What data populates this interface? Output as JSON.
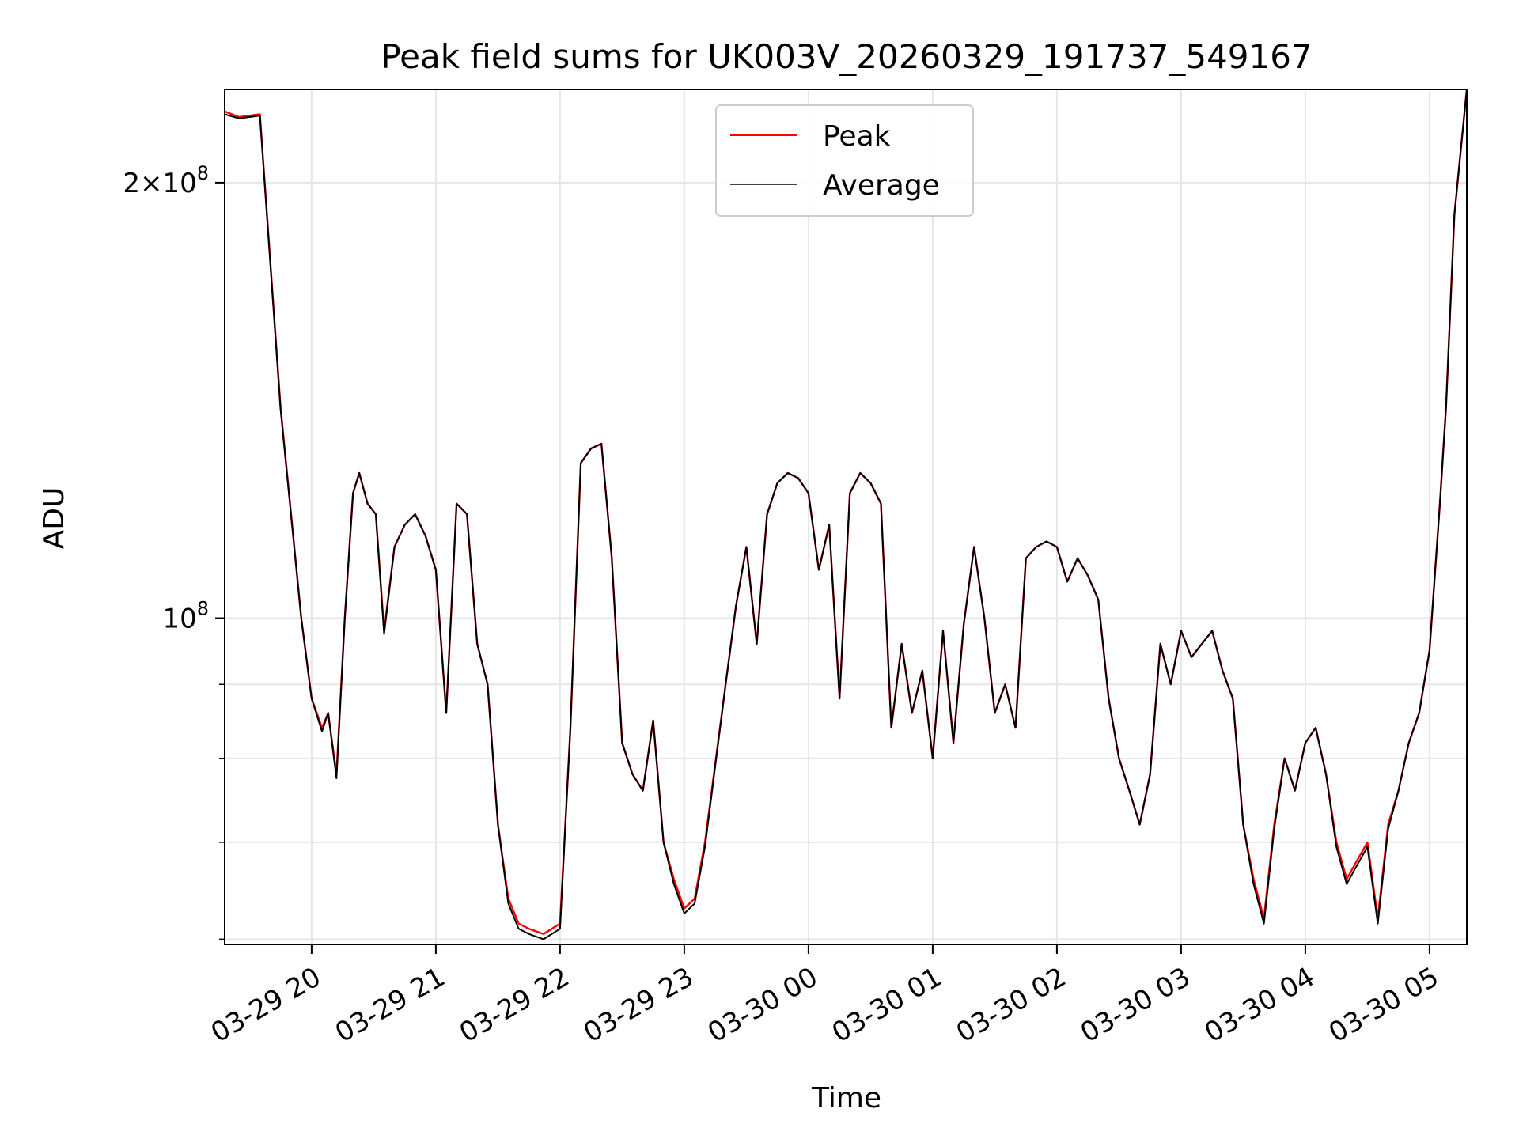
{
  "chart_data": {
    "type": "line",
    "title": "Peak field sums for UK003V_20260329_191737_549167",
    "xlabel": "Time",
    "ylabel": "ADU",
    "y_scale": "log",
    "ylim": [
      59500000,
      232000000
    ],
    "xlim": [
      "2026-03-29 19:18",
      "2026-03-30 05:18"
    ],
    "grid": true,
    "legend": "upper-center",
    "x_ticks": [
      "03-29 20",
      "03-29 21",
      "03-29 22",
      "03-29 23",
      "03-30 00",
      "03-30 01",
      "03-30 02",
      "03-30 03",
      "03-30 04",
      "03-30 05"
    ],
    "y_ticks": [
      {
        "value": 100000000,
        "mantissa": "",
        "exp": "8"
      },
      {
        "value": 200000000,
        "mantissa": "2",
        "exp": "8"
      }
    ],
    "x": [
      "19:18",
      "19:25",
      "19:35",
      "19:45",
      "19:55",
      "20:00",
      "20:05",
      "20:08",
      "20:12",
      "20:16",
      "20:20",
      "20:23",
      "20:27",
      "20:31",
      "20:35",
      "20:40",
      "20:45",
      "20:50",
      "20:55",
      "21:00",
      "21:05",
      "21:10",
      "21:15",
      "21:20",
      "21:25",
      "21:30",
      "21:35",
      "21:40",
      "21:45",
      "21:52",
      "22:00",
      "22:05",
      "22:10",
      "22:15",
      "22:20",
      "22:25",
      "22:30",
      "22:35",
      "22:40",
      "22:45",
      "22:50",
      "22:55",
      "23:00",
      "23:05",
      "23:10",
      "23:20",
      "23:25",
      "23:30",
      "23:35",
      "23:40",
      "23:45",
      "23:50",
      "23:55",
      "00:00",
      "00:05",
      "00:10",
      "00:15",
      "00:20",
      "00:25",
      "00:30",
      "00:35",
      "00:40",
      "00:45",
      "00:50",
      "00:55",
      "01:00",
      "01:05",
      "01:10",
      "01:15",
      "01:20",
      "01:25",
      "01:30",
      "01:35",
      "01:40",
      "01:45",
      "01:50",
      "01:55",
      "02:00",
      "02:05",
      "02:10",
      "02:15",
      "02:20",
      "02:25",
      "02:30",
      "02:35",
      "02:40",
      "02:45",
      "02:50",
      "02:55",
      "03:00",
      "03:05",
      "03:10",
      "03:15",
      "03:20",
      "03:25",
      "03:30",
      "03:35",
      "03:40",
      "03:45",
      "03:50",
      "03:55",
      "04:00",
      "04:05",
      "04:10",
      "04:15",
      "04:20",
      "04:25",
      "04:30",
      "04:35",
      "04:40",
      "04:45",
      "04:50",
      "04:55",
      "05:00",
      "05:05",
      "05:08",
      "05:12",
      "05:18"
    ],
    "series": [
      {
        "name": "Peak",
        "color": "#ff0000",
        "width": 1.2,
        "values": [
          224000000,
          222000000,
          223000000,
          140000000,
          100000000,
          88000000,
          84000000,
          86000000,
          78000000,
          100000000,
          122000000,
          126000000,
          120000000,
          118000000,
          98000000,
          112000000,
          116000000,
          118000000,
          114000000,
          108000000,
          86000000,
          120000000,
          118000000,
          96000000,
          90000000,
          72000000,
          64000000,
          61500000,
          61000000,
          60500000,
          61500000,
          84000000,
          128000000,
          131000000,
          132000000,
          110000000,
          82000000,
          78000000,
          76000000,
          85000000,
          70000000,
          66000000,
          63000000,
          64000000,
          70000000,
          90000000,
          102000000,
          112000000,
          96000000,
          118000000,
          124000000,
          126000000,
          125000000,
          122000000,
          108000000,
          116000000,
          88000000,
          122000000,
          126000000,
          124000000,
          120000000,
          84000000,
          96000000,
          86000000,
          92000000,
          80000000,
          98000000,
          82000000,
          99000000,
          112000000,
          100000000,
          86000000,
          90000000,
          84000000,
          110000000,
          112000000,
          113000000,
          112000000,
          106000000,
          110000000,
          107000000,
          103000000,
          88000000,
          80000000,
          76000000,
          72000000,
          78000000,
          96000000,
          90000000,
          98000000,
          94000000,
          96000000,
          98000000,
          92000000,
          88000000,
          72000000,
          66000000,
          62000000,
          72000000,
          80000000,
          76000000,
          82000000,
          84000000,
          78000000,
          70000000,
          66000000,
          68000000,
          70000000,
          62000000,
          72000000,
          76000000,
          82000000,
          86000000,
          95000000,
          120000000,
          140000000,
          190000000,
          232000000
        ]
      },
      {
        "name": "Average",
        "color": "#000000",
        "width": 1.0,
        "values": [
          223000000,
          221500000,
          222500000,
          139500000,
          100000000,
          88000000,
          83500000,
          86000000,
          77500000,
          100000000,
          122000000,
          126000000,
          120000000,
          118000000,
          97500000,
          112000000,
          116000000,
          118000000,
          114000000,
          108000000,
          86000000,
          120000000,
          118000000,
          96000000,
          90000000,
          72000000,
          63500000,
          61000000,
          60500000,
          60000000,
          61000000,
          84000000,
          128000000,
          131000000,
          132000000,
          110000000,
          82000000,
          78000000,
          76000000,
          85000000,
          70000000,
          65500000,
          62500000,
          63500000,
          69500000,
          90000000,
          102000000,
          112000000,
          96000000,
          118000000,
          124000000,
          126000000,
          125000000,
          122000000,
          108000000,
          116000000,
          88000000,
          122000000,
          126000000,
          124000000,
          120000000,
          84000000,
          96000000,
          86000000,
          92000000,
          80000000,
          98000000,
          82000000,
          99000000,
          112000000,
          100000000,
          86000000,
          90000000,
          84000000,
          110000000,
          112000000,
          113000000,
          112000000,
          106000000,
          110000000,
          107000000,
          103000000,
          88000000,
          80000000,
          76000000,
          72000000,
          78000000,
          96000000,
          90000000,
          98000000,
          94000000,
          96000000,
          98000000,
          92000000,
          88000000,
          72000000,
          65500000,
          61500000,
          71500000,
          80000000,
          76000000,
          82000000,
          84000000,
          78000000,
          69500000,
          65500000,
          67500000,
          69500000,
          61500000,
          71500000,
          76000000,
          82000000,
          86000000,
          95000000,
          120000000,
          140000000,
          190000000,
          232000000
        ]
      }
    ]
  }
}
